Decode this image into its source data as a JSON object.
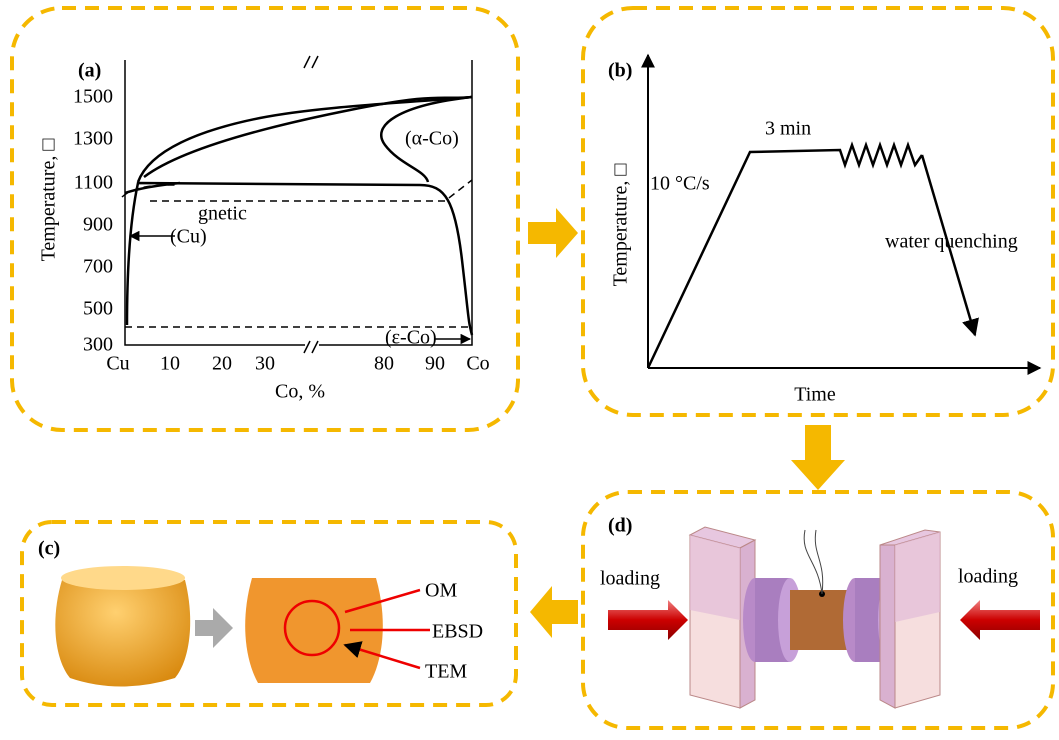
{
  "panel_a": {
    "label": "(a)",
    "y_axis_label": "Temperature, □",
    "x_axis_label": "Co, %",
    "yticks": [
      "1500",
      "1300",
      "1100",
      "900",
      "700",
      "500",
      "300"
    ],
    "xticks": [
      "Cu",
      "10",
      "20",
      "30",
      "80",
      "90",
      "Co"
    ],
    "phases": [
      "(α-Co)",
      "gnetic",
      "(Cu)",
      "(ε-Co)"
    ]
  },
  "panel_b": {
    "label": "(b)",
    "y_axis_label": "Temperature, □",
    "x_axis_label": "Time",
    "heating_rate": "10 °C/s",
    "hold": "3 min",
    "cooling": "water quenching"
  },
  "panel_c": {
    "label": "(c)",
    "observations": [
      "OM",
      "EBSD",
      "TEM"
    ]
  },
  "panel_d": {
    "label": "(d)",
    "left_load": "loading",
    "right_load": "loading"
  }
}
